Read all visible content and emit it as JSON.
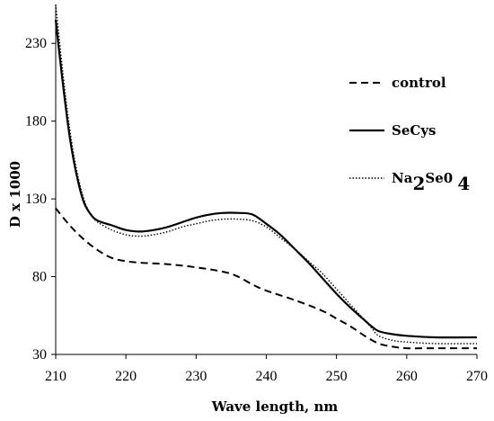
{
  "chart_data": {
    "type": "line",
    "xlabel": "Wave length, nm",
    "ylabel": "D x 1000",
    "xlim": [
      210,
      270
    ],
    "ylim": [
      30,
      255
    ],
    "x_ticks": [
      "210",
      "220",
      "230",
      "240",
      "250",
      "260",
      "270"
    ],
    "y_ticks": [
      "30",
      "80",
      "130",
      "180",
      "230"
    ],
    "grid": false,
    "legend_position": "right",
    "series": [
      {
        "name": "control",
        "style": "dashed",
        "color": "#000000",
        "x": [
          210,
          212,
          214,
          216,
          218,
          220,
          222,
          226,
          230,
          234,
          236,
          238,
          240,
          244,
          248,
          250,
          252,
          254,
          256,
          258,
          260,
          264,
          270
        ],
        "y": [
          124,
          113,
          104,
          97,
          92,
          90,
          89,
          88,
          86,
          83,
          80,
          75,
          71,
          65,
          58,
          53,
          48,
          42,
          37,
          35,
          34,
          34,
          34
        ]
      },
      {
        "name": "SeCys",
        "style": "solid",
        "color": "#000000",
        "x": [
          210,
          211,
          212,
          213,
          214,
          215,
          216,
          218,
          220,
          222,
          224,
          226,
          228,
          230,
          232,
          234,
          236,
          238,
          240,
          242,
          244,
          246,
          248,
          250,
          252,
          254,
          255,
          256,
          258,
          260,
          264,
          270
        ],
        "y": [
          245,
          205,
          170,
          145,
          128,
          120,
          116,
          113,
          110,
          109,
          110,
          112,
          115,
          118,
          120,
          121,
          121,
          120,
          114,
          107,
          98,
          89,
          79,
          69,
          60,
          52,
          48,
          45,
          43,
          42,
          41,
          41
        ]
      },
      {
        "name": "Na2Se04",
        "label_parts": [
          "Na",
          "2",
          "Se0 ",
          "4"
        ],
        "style": "dotted",
        "color": "#000000",
        "x": [
          210,
          211,
          212,
          213,
          214,
          215,
          216,
          218,
          220,
          222,
          224,
          226,
          228,
          230,
          232,
          234,
          236,
          238,
          240,
          242,
          244,
          246,
          248,
          250,
          252,
          254,
          255,
          256,
          258,
          260,
          264,
          270
        ],
        "y": [
          255,
          212,
          175,
          148,
          130,
          120,
          115,
          110,
          107,
          106,
          107,
          109,
          112,
          114,
          116,
          117,
          117,
          116,
          112,
          105,
          98,
          90,
          82,
          72,
          62,
          52,
          47,
          42,
          39,
          38,
          37,
          37
        ]
      }
    ]
  }
}
